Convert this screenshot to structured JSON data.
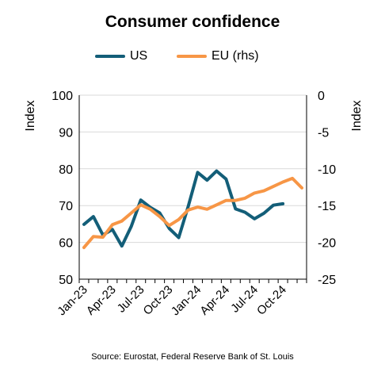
{
  "chart_data": {
    "type": "line",
    "title": "Consumer confidence",
    "source": "Source: Eurostat, Federal Reserve Bank of St. Louis",
    "ylabel_left": "Index",
    "ylabel_right": "Index",
    "ylim_left": [
      50,
      100
    ],
    "ylim_right": [
      -25,
      0
    ],
    "yticks_left": [
      "100",
      "90",
      "80",
      "70",
      "60",
      "50"
    ],
    "yticks_right": [
      "0",
      "-5",
      "-10",
      "-15",
      "-20",
      "-25"
    ],
    "x": [
      "Jan-23",
      "Feb-23",
      "Mar-23",
      "Apr-23",
      "May-23",
      "Jun-23",
      "Jul-23",
      "Aug-23",
      "Sep-23",
      "Oct-23",
      "Nov-23",
      "Dec-23",
      "Jan-24",
      "Feb-24",
      "Mar-24",
      "Apr-24",
      "May-24",
      "Jun-24",
      "Jul-24",
      "Aug-24",
      "Sep-24",
      "Oct-24",
      "Nov-24",
      "Dec-24"
    ],
    "xtick_labels": [
      "Jan-23",
      "Apr-23",
      "Jul-23",
      "Oct-23",
      "Jan-24",
      "Apr-24",
      "Jul-24",
      "Oct-24"
    ],
    "xtick_indices": [
      0,
      3,
      6,
      9,
      12,
      15,
      18,
      21
    ],
    "legend_position": "top",
    "series": [
      {
        "name": "US",
        "axis": "left",
        "color": "#135E78",
        "values": [
          64.9,
          67.0,
          62.0,
          63.5,
          59.0,
          64.4,
          71.5,
          69.5,
          68.0,
          63.8,
          61.3,
          69.7,
          79.0,
          76.9,
          79.4,
          77.2,
          69.1,
          68.2,
          66.4,
          67.9,
          70.1,
          70.5,
          null,
          null
        ]
      },
      {
        "name": "EU (rhs)",
        "axis": "right",
        "color": "#F79646",
        "values": [
          -20.7,
          -19.2,
          -19.3,
          -17.6,
          -17.1,
          -16.0,
          -14.9,
          -15.5,
          -16.5,
          -17.7,
          -16.9,
          -15.6,
          -15.2,
          -15.5,
          -14.9,
          -14.3,
          -14.3,
          -14.0,
          -13.3,
          -13.0,
          -12.4,
          -11.8,
          -11.3,
          -12.6
        ]
      }
    ]
  }
}
